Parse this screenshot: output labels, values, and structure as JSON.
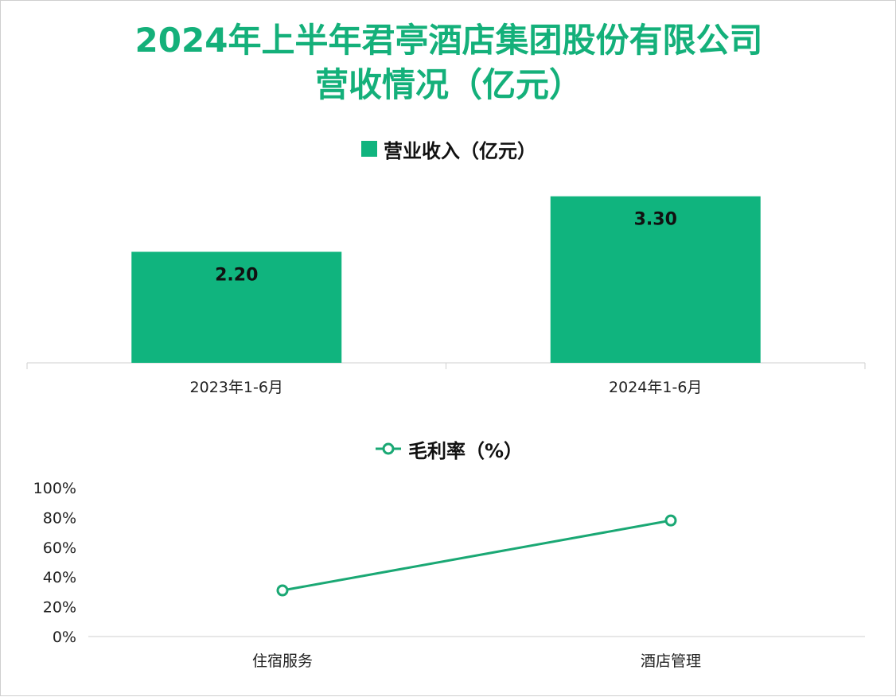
{
  "title_lines": [
    "2024年上半年君亭酒店集团股份有限公司",
    "营收情况（亿元）"
  ],
  "colors": {
    "title": "#14b07a",
    "bar": "#10b47e",
    "line": "#1aa874"
  },
  "chart_data": [
    {
      "type": "bar",
      "legend": "营业收入（亿元）",
      "categories": [
        "2023年1-6月",
        "2024年1-6月"
      ],
      "values": [
        2.2,
        3.3
      ],
      "data_labels": [
        "2.20",
        "3.30"
      ],
      "ylim": [
        0,
        3.8
      ],
      "grid": false,
      "legend_position": "top"
    },
    {
      "type": "line",
      "legend": "毛利率（%）",
      "categories": [
        "住宿服务",
        "酒店管理"
      ],
      "values": [
        31,
        78
      ],
      "yticks": [
        "0%",
        "20%",
        "40%",
        "60%",
        "80%",
        "100%"
      ],
      "ylim": [
        0,
        100
      ],
      "grid": false,
      "legend_position": "top"
    }
  ]
}
